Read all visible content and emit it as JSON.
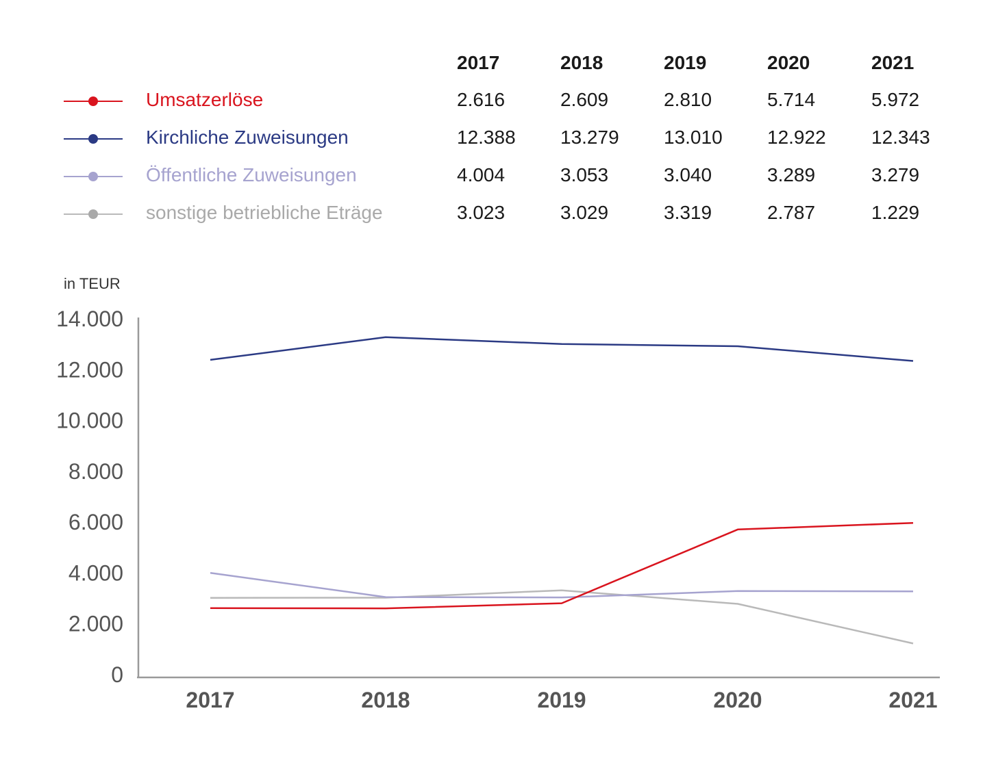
{
  "unit_label": "in TEUR",
  "colors": {
    "umsatz": "#d9141e",
    "kirchlich": "#2b3a84",
    "oeffentlich": "#a6a3cf",
    "sonstige": "#b9b9b9",
    "axis": "#9a9a9a"
  },
  "chart_data": {
    "type": "line",
    "x": [
      "2017",
      "2018",
      "2019",
      "2020",
      "2021"
    ],
    "ylim": [
      0,
      14000
    ],
    "yticks": [
      "0",
      "2.000",
      "4.000",
      "6.000",
      "8.000",
      "10.000",
      "12.000",
      "14.000"
    ],
    "ytick_values": [
      0,
      2000,
      4000,
      6000,
      8000,
      10000,
      12000,
      14000
    ],
    "grid": false,
    "legend": "top (table)",
    "series": [
      {
        "name": "Umsatzerlöse",
        "color_key": "umsatz",
        "values": [
          2616,
          2609,
          2810,
          5714,
          5972
        ],
        "labels": [
          "2.616",
          "2.609",
          "2.810",
          "5.714",
          "5.972"
        ]
      },
      {
        "name": "Kirchliche Zuweisungen",
        "color_key": "kirchlich",
        "values": [
          12388,
          13279,
          13010,
          12922,
          12343
        ],
        "labels": [
          "12.388",
          "13.279",
          "13.010",
          "12.922",
          "12.343"
        ]
      },
      {
        "name": "Öffentliche Zuweisungen",
        "color_key": "oeffentlich",
        "values": [
          4004,
          3053,
          3040,
          3289,
          3279
        ],
        "labels": [
          "4.004",
          "3.053",
          "3.040",
          "3.289",
          "3.279"
        ]
      },
      {
        "name": "sonstige betriebliche Eträge",
        "color_key": "sonstige",
        "values": [
          3023,
          3029,
          3319,
          2787,
          1229
        ],
        "labels": [
          "3.023",
          "3.029",
          "3.319",
          "2.787",
          "1.229"
        ]
      }
    ]
  }
}
